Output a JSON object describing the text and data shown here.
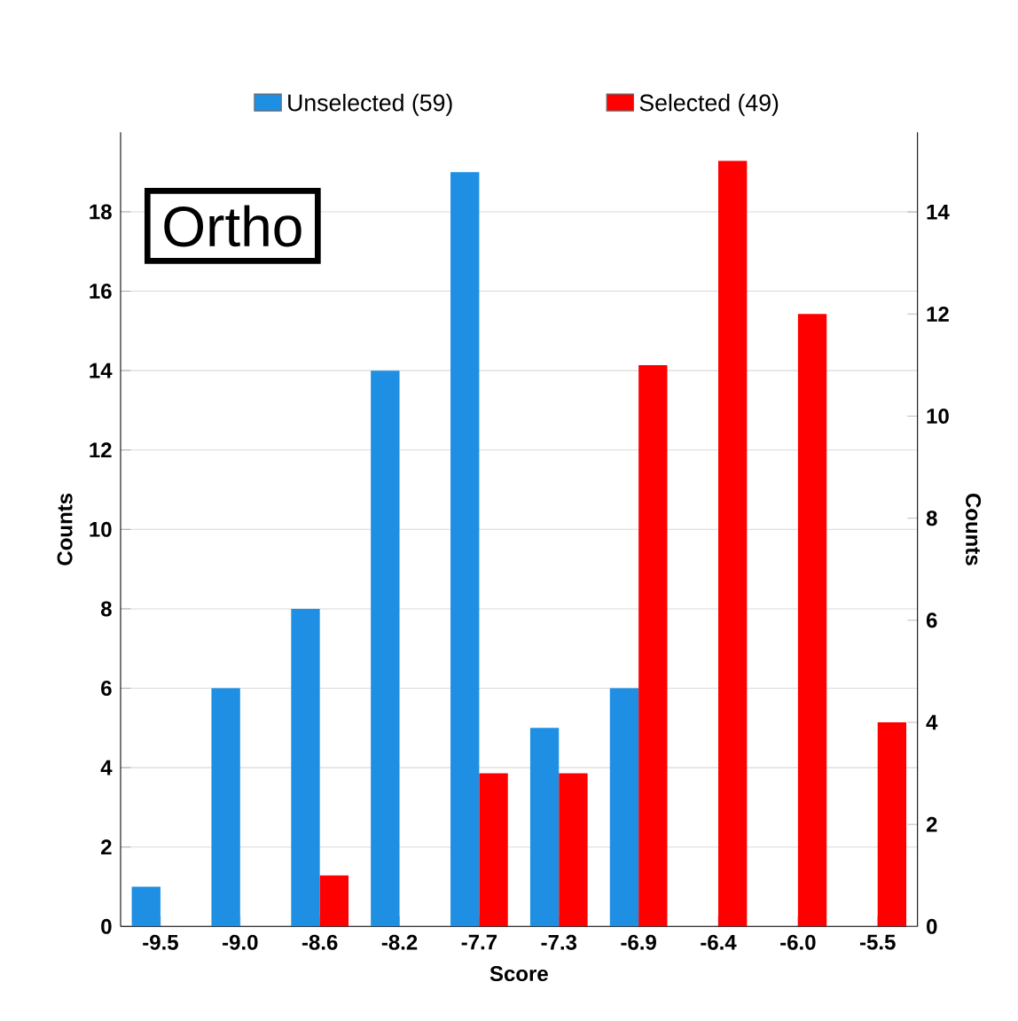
{
  "chart_data": {
    "type": "bar",
    "xlabel": "Score",
    "ylabel": "Counts",
    "y2label": "Counts",
    "categories": [
      "-9.5",
      "-9.0",
      "-8.6",
      "-8.2",
      "-7.7",
      "-7.3",
      "-6.9",
      "-6.4",
      "-6.0",
      "-5.5"
    ],
    "series": [
      {
        "name": "Unselected (59)",
        "color": "#1e8fe3",
        "values": [
          1,
          6,
          8,
          14,
          19,
          5,
          6,
          0,
          0,
          0
        ]
      },
      {
        "name": "Selected (49)",
        "color": "#ff0000",
        "axis": "y2",
        "values": [
          0,
          0,
          1,
          0,
          3,
          3,
          11,
          15,
          12,
          4
        ]
      }
    ],
    "ylim": [
      0,
      20
    ],
    "yticks": [
      0,
      2,
      4,
      6,
      8,
      10,
      12,
      14,
      16,
      18
    ],
    "y2lim": [
      0,
      15.56
    ],
    "y2ticks": [
      0,
      2,
      4,
      6,
      8,
      10,
      12,
      14
    ],
    "grid": "y",
    "legend": "top",
    "annotations": [
      "Ortho"
    ]
  }
}
